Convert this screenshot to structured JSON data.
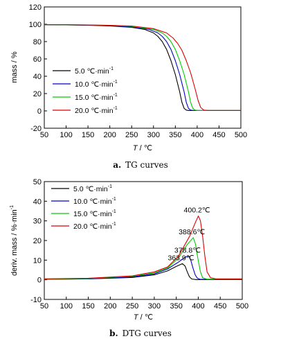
{
  "chart_data": [
    {
      "type": "line",
      "caption_letter": "a.",
      "caption_text": "TG curves",
      "xlabel_var": "T",
      "xlabel_unit": " / ℃",
      "ylabel": "mass / %",
      "xlim": [
        50,
        500
      ],
      "ylim": [
        -20,
        120
      ],
      "xticks": [
        50,
        100,
        150,
        200,
        250,
        300,
        350,
        400,
        450,
        500
      ],
      "yticks": [
        -20,
        0,
        20,
        40,
        60,
        80,
        100,
        120
      ],
      "legend_position": "bottom-left",
      "series": [
        {
          "name": "5.0 ℃·min",
          "name_sup": "-1",
          "color": "#000000",
          "points": [
            [
              50,
              99.5
            ],
            [
              100,
              99.2
            ],
            [
              150,
              98.8
            ],
            [
              200,
              98
            ],
            [
              250,
              96.5
            ],
            [
              280,
              94
            ],
            [
              300,
              90
            ],
            [
              310,
              86
            ],
            [
              320,
              80
            ],
            [
              330,
              71
            ],
            [
              340,
              58
            ],
            [
              350,
              42
            ],
            [
              360,
              22
            ],
            [
              365,
              10
            ],
            [
              370,
              3
            ],
            [
              375,
              1
            ],
            [
              380,
              0.5
            ],
            [
              400,
              0.5
            ],
            [
              500,
              0.5
            ]
          ]
        },
        {
          "name": "10.0 ℃·min",
          "name_sup": "-1",
          "color": "#0000cc",
          "points": [
            [
              50,
              99.5
            ],
            [
              100,
              99.3
            ],
            [
              150,
              99
            ],
            [
              200,
              98.5
            ],
            [
              250,
              97
            ],
            [
              290,
              94
            ],
            [
              310,
              90
            ],
            [
              320,
              86
            ],
            [
              330,
              80
            ],
            [
              340,
              71
            ],
            [
              350,
              58
            ],
            [
              360,
              42
            ],
            [
              370,
              22
            ],
            [
              375,
              10
            ],
            [
              380,
              3
            ],
            [
              385,
              1
            ],
            [
              390,
              0.6
            ],
            [
              410,
              0.5
            ],
            [
              500,
              0.5
            ]
          ]
        },
        {
          "name": "15.0 ℃·min",
          "name_sup": "-1",
          "color": "#00cc00",
          "points": [
            [
              50,
              99.5
            ],
            [
              100,
              99.4
            ],
            [
              150,
              99.1
            ],
            [
              200,
              98.7
            ],
            [
              250,
              97.5
            ],
            [
              300,
              94
            ],
            [
              320,
              90
            ],
            [
              330,
              86
            ],
            [
              340,
              80
            ],
            [
              350,
              71
            ],
            [
              360,
              58
            ],
            [
              370,
              42
            ],
            [
              380,
              22
            ],
            [
              385,
              10
            ],
            [
              390,
              3
            ],
            [
              395,
              1
            ],
            [
              400,
              0.6
            ],
            [
              420,
              0.5
            ],
            [
              500,
              0.5
            ]
          ]
        },
        {
          "name": "20.0 ℃·min",
          "name_sup": "-1",
          "color": "#dd0000",
          "points": [
            [
              50,
              99.5
            ],
            [
              100,
              99.5
            ],
            [
              150,
              99.2
            ],
            [
              200,
              98.8
            ],
            [
              250,
              98
            ],
            [
              300,
              95
            ],
            [
              330,
              90
            ],
            [
              345,
              84
            ],
            [
              355,
              78
            ],
            [
              365,
              70
            ],
            [
              375,
              58
            ],
            [
              385,
              44
            ],
            [
              395,
              26
            ],
            [
              402,
              12
            ],
            [
              408,
              4
            ],
            [
              415,
              1
            ],
            [
              425,
              0.5
            ],
            [
              440,
              0.5
            ],
            [
              500,
              0.5
            ]
          ]
        }
      ]
    },
    {
      "type": "line",
      "caption_letter": "b.",
      "caption_text": "DTG curves",
      "xlabel_var": "T",
      "xlabel_unit": " / ℃",
      "ylabel": "deriv. mass / %·min",
      "ylabel_sup": "-1",
      "xlim": [
        50,
        500
      ],
      "ylim": [
        -10,
        50
      ],
      "xticks": [
        50,
        100,
        150,
        200,
        250,
        300,
        350,
        400,
        450,
        500
      ],
      "yticks": [
        -10,
        0,
        10,
        20,
        30,
        40,
        50
      ],
      "legend_position": "top-left",
      "series": [
        {
          "name": "5.0 ℃·min",
          "name_sup": "-1",
          "color": "#000000",
          "points": [
            [
              50,
              0.2
            ],
            [
              150,
              0.4
            ],
            [
              250,
              1.2
            ],
            [
              300,
              2.5
            ],
            [
              330,
              4.5
            ],
            [
              350,
              6.8
            ],
            [
              363.9,
              8.2
            ],
            [
              370,
              7
            ],
            [
              375,
              4
            ],
            [
              380,
              1.5
            ],
            [
              385,
              0.4
            ],
            [
              395,
              0.1
            ],
            [
              500,
              0.1
            ]
          ]
        },
        {
          "name": "10.0 ℃·min",
          "name_sup": "-1",
          "color": "#0000cc",
          "points": [
            [
              50,
              0.3
            ],
            [
              150,
              0.5
            ],
            [
              250,
              1.5
            ],
            [
              300,
              3
            ],
            [
              330,
              5.5
            ],
            [
              355,
              9
            ],
            [
              370,
              11.5
            ],
            [
              378.8,
              12
            ],
            [
              383,
              10
            ],
            [
              388,
              6
            ],
            [
              393,
              2.5
            ],
            [
              398,
              0.8
            ],
            [
              405,
              0.2
            ],
            [
              500,
              0.2
            ]
          ]
        },
        {
          "name": "15.0 ℃·min",
          "name_sup": "-1",
          "color": "#00cc00",
          "points": [
            [
              50,
              0.3
            ],
            [
              150,
              0.6
            ],
            [
              250,
              1.8
            ],
            [
              300,
              3.5
            ],
            [
              330,
              6
            ],
            [
              355,
              11
            ],
            [
              375,
              18
            ],
            [
              388.6,
              21.5
            ],
            [
              394,
              18
            ],
            [
              399,
              11
            ],
            [
              405,
              4
            ],
            [
              410,
              1
            ],
            [
              420,
              0.3
            ],
            [
              500,
              0.3
            ]
          ]
        },
        {
          "name": "20.0 ℃·min",
          "name_sup": "-1",
          "color": "#dd0000",
          "points": [
            [
              50,
              0.5
            ],
            [
              150,
              0.8
            ],
            [
              250,
              2
            ],
            [
              300,
              4
            ],
            [
              330,
              6.5
            ],
            [
              355,
              12
            ],
            [
              380,
              22
            ],
            [
              395,
              30
            ],
            [
              400.2,
              32.5
            ],
            [
              405,
              30
            ],
            [
              410,
              22
            ],
            [
              415,
              12
            ],
            [
              420,
              4
            ],
            [
              428,
              1
            ],
            [
              440,
              0.5
            ],
            [
              500,
              0.5
            ]
          ]
        }
      ],
      "annotations": [
        {
          "text": "363.9℃",
          "x": 363.9,
          "y": 8.2
        },
        {
          "text": "378.8℃",
          "x": 378.8,
          "y": 12
        },
        {
          "text": "388.6℃",
          "x": 388.6,
          "y": 21.5
        },
        {
          "text": "400.2℃",
          "x": 400.2,
          "y": 32.5
        }
      ]
    }
  ]
}
